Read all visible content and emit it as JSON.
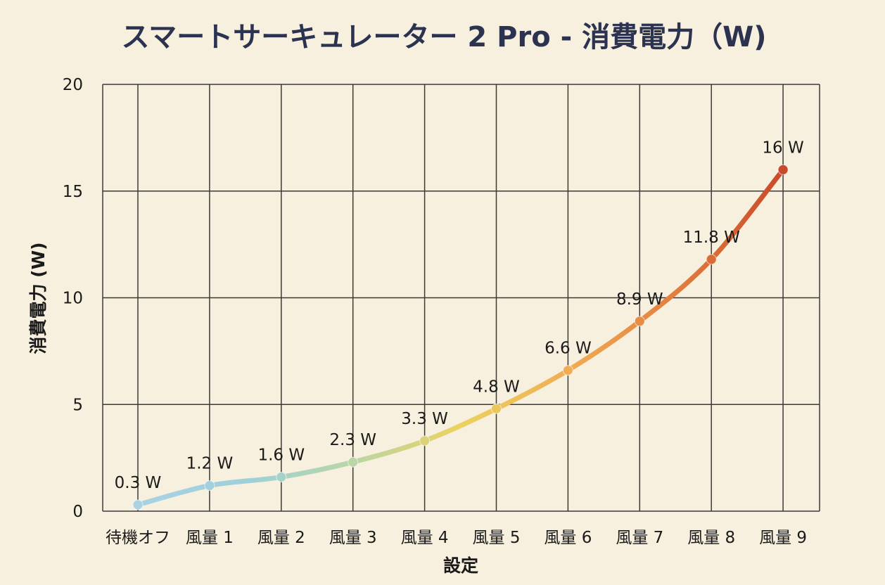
{
  "chart_data": {
    "type": "line",
    "title": "スマートサーキュレーター 2 Pro - 消費電力（W)",
    "xlabel": "設定",
    "ylabel": "消費電力 (W)",
    "categories": [
      "待機オフ",
      "風量 1",
      "風量 2",
      "風量 3",
      "風量 4",
      "風量 5",
      "風量 6",
      "風量 7",
      "風量 8",
      "風量 9"
    ],
    "series": [
      {
        "values": [
          0.3,
          1.2,
          1.6,
          2.3,
          3.3,
          4.8,
          6.6,
          8.9,
          11.8,
          16
        ]
      }
    ],
    "data_labels": [
      "0.3 W",
      "1.2 W",
      "1.6 W",
      "2.3 W",
      "3.3 W",
      "4.8 W",
      "6.6 W",
      "8.9 W",
      "11.8 W",
      "16 W"
    ],
    "y_ticks": [
      "0",
      "5",
      "10",
      "15",
      "20"
    ],
    "ylim": [
      0,
      20
    ],
    "grid": true,
    "colors": {
      "background": "#f8f0de",
      "grid": "#3a3a3a",
      "gradient": [
        "#a9d2e3",
        "#9ed0da",
        "#b9d6a6",
        "#ecd25e",
        "#f0ad55",
        "#e27e3e",
        "#c94a2a"
      ]
    }
  }
}
